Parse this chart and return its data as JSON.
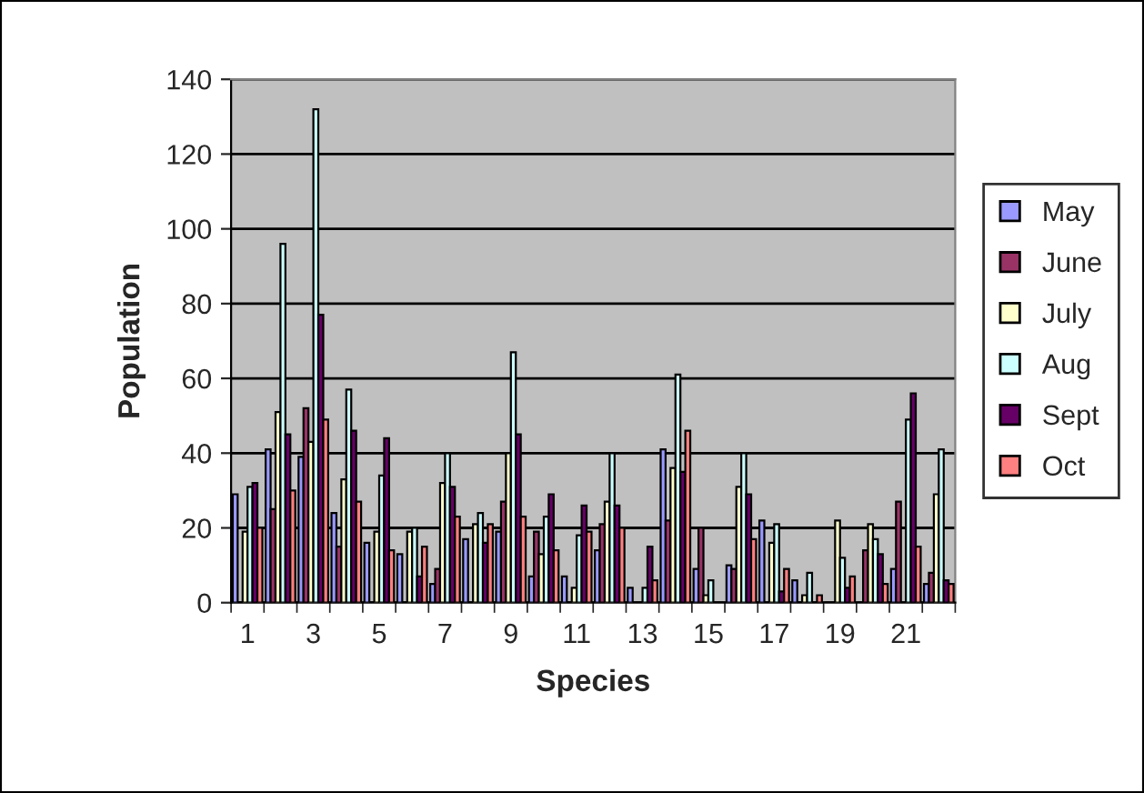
{
  "chart_data": {
    "type": "bar",
    "xlabel": "Species",
    "ylabel": "Population",
    "categories": [
      "1",
      null,
      "3",
      null,
      "5",
      null,
      "7",
      null,
      "9",
      null,
      "11",
      null,
      "13",
      null,
      "15",
      null,
      "17",
      null,
      "19",
      null,
      "21",
      null
    ],
    "series": [
      {
        "name": "May",
        "color": "#9999ff",
        "values": [
          29,
          41,
          39,
          24,
          16,
          13,
          5,
          17,
          19,
          7,
          7,
          14,
          4,
          41,
          9,
          10,
          22,
          6,
          0,
          0,
          9,
          5
        ]
      },
      {
        "name": "June",
        "color": "#993366",
        "values": [
          0,
          25,
          52,
          15,
          0,
          0,
          9,
          0,
          27,
          19,
          0,
          21,
          0,
          22,
          20,
          9,
          0,
          0,
          0,
          14,
          27,
          8
        ]
      },
      {
        "name": "July",
        "color": "#ffffcc",
        "values": [
          19,
          51,
          43,
          33,
          19,
          19,
          32,
          21,
          40,
          13,
          4,
          27,
          0,
          36,
          2,
          31,
          16,
          2,
          22,
          21,
          0,
          29
        ]
      },
      {
        "name": "Aug",
        "color": "#ccffff",
        "values": [
          31,
          96,
          132,
          57,
          34,
          20,
          40,
          24,
          67,
          23,
          18,
          40,
          4,
          61,
          6,
          40,
          21,
          8,
          12,
          17,
          49,
          41
        ]
      },
      {
        "name": "Sept",
        "color": "#660066",
        "values": [
          32,
          45,
          77,
          46,
          44,
          7,
          31,
          16,
          45,
          29,
          26,
          26,
          15,
          35,
          0,
          29,
          3,
          0,
          4,
          13,
          56,
          6
        ]
      },
      {
        "name": "Oct",
        "color": "#ff8080",
        "values": [
          20,
          30,
          49,
          27,
          14,
          15,
          23,
          21,
          23,
          14,
          19,
          20,
          6,
          46,
          0,
          17,
          9,
          2,
          7,
          5,
          15,
          5
        ]
      }
    ],
    "ylim": [
      0,
      140
    ],
    "yticks": [
      0,
      20,
      40,
      60,
      80,
      100,
      120,
      140
    ],
    "grid": "y",
    "legend": "right"
  }
}
